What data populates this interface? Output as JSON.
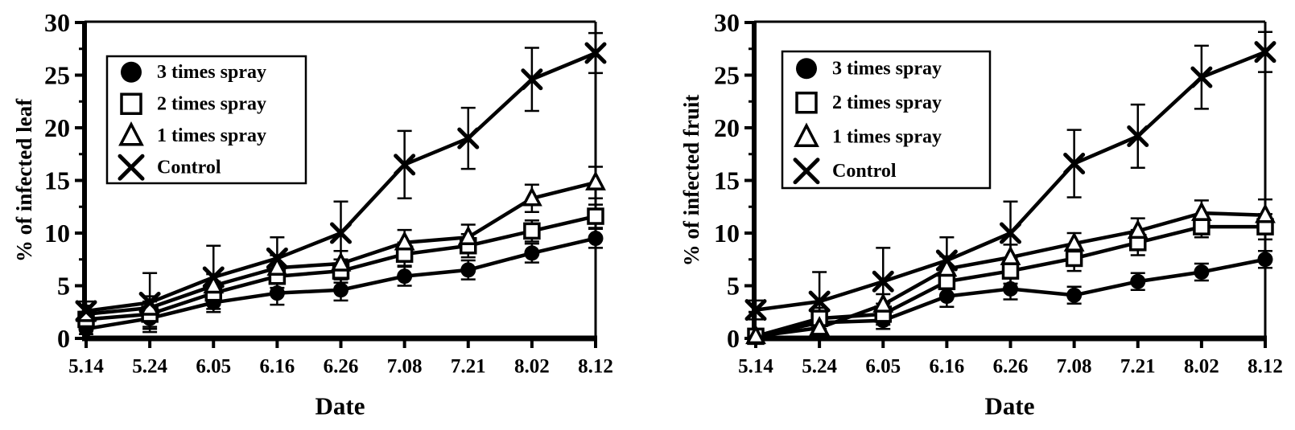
{
  "styles": {
    "ink": "#000000",
    "background": "#ffffff",
    "marker_fill": "#ffffff"
  },
  "chart_data": [
    {
      "type": "line",
      "panel": "left",
      "title": "",
      "xlabel": "Date",
      "ylabel": "% of infected leaf",
      "categories": [
        "5.14",
        "5.24",
        "6.05",
        "6.16",
        "6.26",
        "7.08",
        "7.21",
        "8.02",
        "8.12"
      ],
      "ylim": [
        0,
        30
      ],
      "yticks": [
        0,
        5,
        10,
        15,
        20,
        25,
        30
      ],
      "minor_tick_step": 2.5,
      "grid": false,
      "legend_position": "upper-left",
      "error_bars": true,
      "series": [
        {
          "name": "3 times spray",
          "marker": "filled-circle",
          "values": [
            0.9,
            1.9,
            3.4,
            4.3,
            4.6,
            5.9,
            6.5,
            8.1,
            9.5
          ],
          "errors": [
            0.5,
            1.0,
            0.9,
            1.1,
            1.0,
            0.9,
            0.9,
            0.9,
            0.9
          ]
        },
        {
          "name": "2 times spray",
          "marker": "open-square",
          "values": [
            1.8,
            2.3,
            4.3,
            5.9,
            6.4,
            8.0,
            8.8,
            10.2,
            11.6
          ],
          "errors": [
            0.7,
            1.2,
            1.1,
            1.1,
            1.1,
            1.1,
            1.1,
            1.0,
            1.1
          ]
        },
        {
          "name": "1 times spray",
          "marker": "open-triangle",
          "values": [
            2.3,
            2.9,
            5.0,
            6.7,
            7.1,
            9.1,
            9.6,
            13.3,
            14.8
          ],
          "errors": [
            0.8,
            1.1,
            1.1,
            1.2,
            1.2,
            1.2,
            1.2,
            1.3,
            1.5
          ]
        },
        {
          "name": "Control",
          "marker": "x-cross",
          "values": [
            2.6,
            3.4,
            5.8,
            7.6,
            10.0,
            16.5,
            19.0,
            24.6,
            27.1
          ],
          "errors": [
            0.9,
            2.8,
            3.0,
            2.0,
            3.0,
            3.2,
            2.9,
            3.0,
            1.9
          ]
        }
      ]
    },
    {
      "type": "line",
      "panel": "right",
      "title": "",
      "xlabel": "Date",
      "ylabel": "% of infected fruit",
      "categories": [
        "5.14",
        "5.24",
        "6.05",
        "6.16",
        "6.26",
        "7.08",
        "7.21",
        "8.02",
        "8.12"
      ],
      "ylim": [
        0,
        30
      ],
      "yticks": [
        0,
        5,
        10,
        15,
        20,
        25,
        30
      ],
      "minor_tick_step": 2.5,
      "grid": false,
      "legend_position": "upper-left",
      "error_bars": true,
      "series": [
        {
          "name": "3 times spray",
          "marker": "filled-circle",
          "values": [
            0.2,
            1.5,
            1.7,
            4.0,
            4.7,
            4.1,
            5.4,
            6.3,
            7.5
          ],
          "errors": [
            0.3,
            0.8,
            0.8,
            1.0,
            1.0,
            0.8,
            0.8,
            0.8,
            0.8
          ]
        },
        {
          "name": "2 times spray",
          "marker": "open-square",
          "values": [
            0.2,
            1.9,
            2.3,
            5.4,
            6.4,
            7.6,
            9.1,
            10.6,
            10.6
          ],
          "errors": [
            0.3,
            1.0,
            1.0,
            1.2,
            1.2,
            1.2,
            1.2,
            1.0,
            1.2
          ]
        },
        {
          "name": "1 times spray",
          "marker": "open-triangle",
          "values": [
            0.2,
            1.0,
            3.2,
            6.6,
            7.7,
            9.0,
            10.2,
            11.9,
            11.7
          ],
          "errors": [
            0.3,
            0.8,
            1.0,
            1.2,
            1.2,
            1.0,
            1.2,
            1.2,
            1.5
          ]
        },
        {
          "name": "Control",
          "marker": "x-cross",
          "values": [
            2.7,
            3.5,
            5.4,
            7.4,
            10.0,
            16.6,
            19.2,
            24.8,
            27.2
          ],
          "errors": [
            0.9,
            2.8,
            3.2,
            2.2,
            3.0,
            3.2,
            3.0,
            3.0,
            1.9
          ]
        }
      ]
    }
  ]
}
